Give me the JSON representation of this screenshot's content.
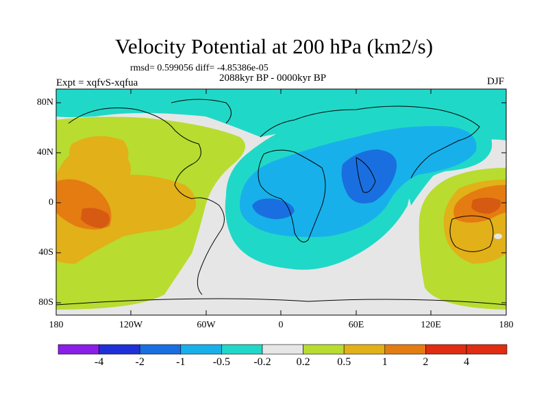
{
  "title": "Velocity Potential at 200 hPa (km2/s)",
  "stats": "rmsd= 0.599056 diff= -4.85386e-05",
  "experiment": "Expt = xqfvS-xqfua",
  "period": "2088kyr BP - 0000kyr BP",
  "season": "DJF",
  "lat_labels": [
    "80N",
    "40N",
    "0",
    "40S",
    "80S"
  ],
  "lon_labels": [
    "180",
    "120W",
    "60W",
    "0",
    "60E",
    "120E",
    "180"
  ],
  "colorbar": {
    "labels": [
      "-4",
      "-2",
      "-1",
      "-0.5",
      "-0.2",
      "0.2",
      "0.5",
      "1",
      "2",
      "4"
    ],
    "colors": [
      "#8a1ee8",
      "#2030d8",
      "#1a6fe0",
      "#18b0ea",
      "#20d8c8",
      "#e6e6e6",
      "#b8dc30",
      "#e2b018",
      "#e47c12",
      "#e02c10"
    ]
  },
  "regions": {
    "neutral": "#e6e6e6",
    "pos_weak": "#b8dc30",
    "pos_mid": "#e2b018",
    "pos_strong": "#e47c12",
    "pos_max": "#d65a12",
    "neg_weak": "#20d8c8",
    "neg_mid": "#18b0ea",
    "neg_strong": "#1a6fe0"
  }
}
